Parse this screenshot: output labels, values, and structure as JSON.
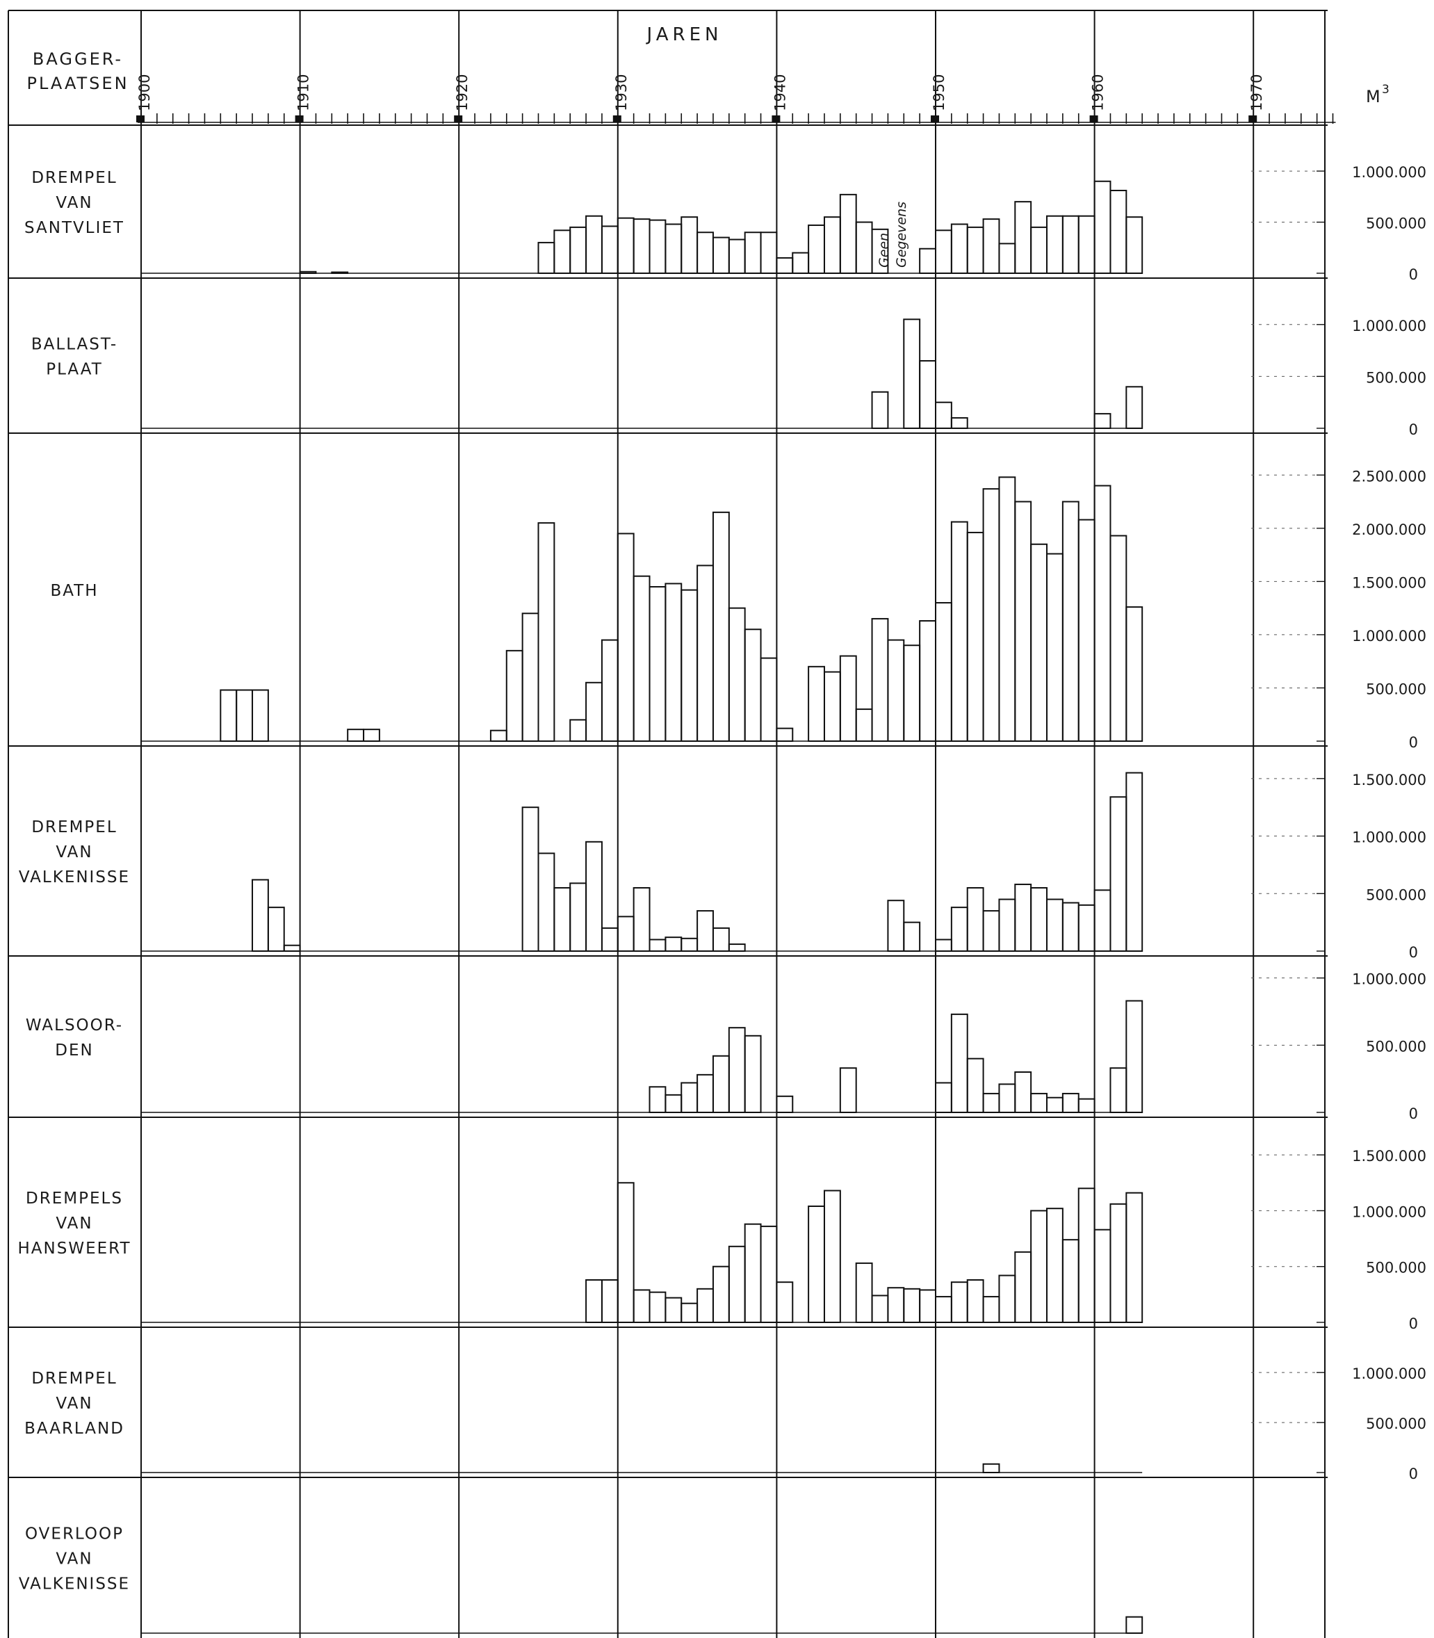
{
  "header": {
    "left_label_line1": "BAGGER-",
    "left_label_line2": "PLAATSEN",
    "center_label": "JAREN",
    "unit_label": "M",
    "unit_superscript": "3"
  },
  "annotation": {
    "line1": "Geen",
    "line2": "Gegevens"
  },
  "chart_data": {
    "type": "bar",
    "x_axis": {
      "start_year": 1900,
      "end_year": 1975,
      "decade_labels": [
        "1900",
        "1910",
        "1920",
        "1930",
        "1940",
        "1950",
        "1960",
        "1970"
      ]
    },
    "panels": [
      {
        "label_lines": [
          "DREMPEL",
          "VAN",
          "SANTVLIET"
        ],
        "ymax": 1300000,
        "ticks": [
          {
            "v": 1000000,
            "label": "1.000.000"
          },
          {
            "v": 500000,
            "label": "500.000"
          },
          {
            "v": 0,
            "label": "0"
          }
        ],
        "bars": [
          [
            1910,
            15000
          ],
          [
            1912,
            10000
          ],
          [
            1925,
            300000
          ],
          [
            1926,
            420000
          ],
          [
            1927,
            450000
          ],
          [
            1928,
            560000
          ],
          [
            1929,
            460000
          ],
          [
            1930,
            540000
          ],
          [
            1931,
            530000
          ],
          [
            1932,
            520000
          ],
          [
            1933,
            480000
          ],
          [
            1934,
            550000
          ],
          [
            1935,
            400000
          ],
          [
            1936,
            350000
          ],
          [
            1937,
            330000
          ],
          [
            1938,
            400000
          ],
          [
            1939,
            400000
          ],
          [
            1940,
            150000
          ],
          [
            1941,
            200000
          ],
          [
            1942,
            470000
          ],
          [
            1943,
            550000
          ],
          [
            1944,
            770000
          ],
          [
            1945,
            500000
          ],
          [
            1946,
            430000
          ],
          [
            1949,
            240000
          ],
          [
            1950,
            420000
          ],
          [
            1951,
            480000
          ],
          [
            1952,
            450000
          ],
          [
            1953,
            530000
          ],
          [
            1954,
            290000
          ],
          [
            1955,
            700000
          ],
          [
            1956,
            450000
          ],
          [
            1957,
            560000
          ],
          [
            1958,
            560000
          ],
          [
            1959,
            560000
          ],
          [
            1960,
            900000
          ],
          [
            1961,
            810000
          ],
          [
            1962,
            550000
          ]
        ]
      },
      {
        "label_lines": [
          "BALLAST-",
          "PLAAT"
        ],
        "ymax": 1300000,
        "ticks": [
          {
            "v": 1000000,
            "label": "1.000.000"
          },
          {
            "v": 500000,
            "label": "500.000"
          },
          {
            "v": 0,
            "label": "0"
          }
        ],
        "bars": [
          [
            1946,
            350000
          ],
          [
            1948,
            1050000
          ],
          [
            1949,
            650000
          ],
          [
            1950,
            250000
          ],
          [
            1951,
            100000
          ],
          [
            1960,
            140000
          ],
          [
            1962,
            400000
          ]
        ]
      },
      {
        "label_lines": [
          "BATH"
        ],
        "ymax": 2750000,
        "ticks": [
          {
            "v": 2500000,
            "label": "2.500.000"
          },
          {
            "v": 2000000,
            "label": "2.000.000"
          },
          {
            "v": 1500000,
            "label": "1.500.000"
          },
          {
            "v": 1000000,
            "label": "1.000.000"
          },
          {
            "v": 500000,
            "label": "500.000"
          },
          {
            "v": 0,
            "label": "0"
          }
        ],
        "bars": [
          [
            1905,
            480000
          ],
          [
            1906,
            480000
          ],
          [
            1907,
            480000
          ],
          [
            1913,
            110000
          ],
          [
            1914,
            110000
          ],
          [
            1922,
            100000
          ],
          [
            1923,
            850000
          ],
          [
            1924,
            1200000
          ],
          [
            1925,
            2050000
          ],
          [
            1926,
            0
          ],
          [
            1927,
            200000
          ],
          [
            1928,
            550000
          ],
          [
            1929,
            950000
          ],
          [
            1930,
            1950000
          ],
          [
            1931,
            1550000
          ],
          [
            1932,
            1450000
          ],
          [
            1933,
            1480000
          ],
          [
            1934,
            1420000
          ],
          [
            1935,
            1650000
          ],
          [
            1936,
            2150000
          ],
          [
            1937,
            1250000
          ],
          [
            1938,
            1050000
          ],
          [
            1939,
            780000
          ],
          [
            1940,
            120000
          ],
          [
            1941,
            0
          ],
          [
            1942,
            700000
          ],
          [
            1943,
            650000
          ],
          [
            1944,
            800000
          ],
          [
            1945,
            300000
          ],
          [
            1946,
            1150000
          ],
          [
            1947,
            950000
          ],
          [
            1948,
            900000
          ],
          [
            1949,
            1130000
          ],
          [
            1950,
            1300000
          ],
          [
            1951,
            2060000
          ],
          [
            1952,
            1960000
          ],
          [
            1953,
            2370000
          ],
          [
            1954,
            2480000
          ],
          [
            1955,
            2250000
          ],
          [
            1956,
            1850000
          ],
          [
            1957,
            1760000
          ],
          [
            1958,
            2250000
          ],
          [
            1959,
            2080000
          ],
          [
            1960,
            2400000
          ],
          [
            1961,
            1930000
          ],
          [
            1962,
            1260000
          ]
        ]
      },
      {
        "label_lines": [
          "DREMPEL",
          "VAN",
          "VALKENISSE"
        ],
        "ymax": 1650000,
        "ticks": [
          {
            "v": 1500000,
            "label": "1.500.000"
          },
          {
            "v": 1000000,
            "label": "1.000.000"
          },
          {
            "v": 500000,
            "label": "500.000"
          },
          {
            "v": 0,
            "label": "0"
          }
        ],
        "bars": [
          [
            1907,
            620000
          ],
          [
            1908,
            380000
          ],
          [
            1909,
            50000
          ],
          [
            1924,
            1250000
          ],
          [
            1925,
            850000
          ],
          [
            1926,
            550000
          ],
          [
            1927,
            590000
          ],
          [
            1928,
            950000
          ],
          [
            1929,
            200000
          ],
          [
            1930,
            300000
          ],
          [
            1931,
            550000
          ],
          [
            1932,
            100000
          ],
          [
            1933,
            120000
          ],
          [
            1934,
            110000
          ],
          [
            1935,
            350000
          ],
          [
            1936,
            200000
          ],
          [
            1937,
            60000
          ],
          [
            1947,
            440000
          ],
          [
            1948,
            250000
          ],
          [
            1950,
            100000
          ],
          [
            1951,
            380000
          ],
          [
            1952,
            550000
          ],
          [
            1953,
            350000
          ],
          [
            1954,
            450000
          ],
          [
            1955,
            580000
          ],
          [
            1956,
            550000
          ],
          [
            1957,
            450000
          ],
          [
            1958,
            420000
          ],
          [
            1959,
            400000
          ],
          [
            1960,
            530000
          ],
          [
            1961,
            1340000
          ],
          [
            1962,
            1550000
          ]
        ]
      },
      {
        "label_lines": [
          "WALSOOR-",
          "DEN"
        ],
        "ymax": 1050000,
        "ticks": [
          {
            "v": 1000000,
            "label": "1.000.000"
          },
          {
            "v": 500000,
            "label": "500.000"
          },
          {
            "v": 0,
            "label": "0"
          }
        ],
        "bars": [
          [
            1932,
            190000
          ],
          [
            1933,
            130000
          ],
          [
            1934,
            220000
          ],
          [
            1935,
            280000
          ],
          [
            1936,
            420000
          ],
          [
            1937,
            630000
          ],
          [
            1938,
            570000
          ],
          [
            1940,
            120000
          ],
          [
            1944,
            330000
          ],
          [
            1950,
            220000
          ],
          [
            1951,
            730000
          ],
          [
            1952,
            400000
          ],
          [
            1953,
            140000
          ],
          [
            1954,
            210000
          ],
          [
            1955,
            300000
          ],
          [
            1956,
            140000
          ],
          [
            1957,
            110000
          ],
          [
            1958,
            140000
          ],
          [
            1959,
            100000
          ],
          [
            1961,
            330000
          ],
          [
            1962,
            830000
          ]
        ]
      },
      {
        "label_lines": [
          "DREMPELS",
          "VAN",
          "HANSWEERT"
        ],
        "ymax": 1700000,
        "ticks": [
          {
            "v": 1500000,
            "label": "1.500.000"
          },
          {
            "v": 1000000,
            "label": "1.000.000"
          },
          {
            "v": 500000,
            "label": "500.000"
          },
          {
            "v": 0,
            "label": "0"
          }
        ],
        "bars": [
          [
            1928,
            380000
          ],
          [
            1929,
            380000
          ],
          [
            1930,
            1250000
          ],
          [
            1931,
            290000
          ],
          [
            1932,
            270000
          ],
          [
            1933,
            220000
          ],
          [
            1934,
            170000
          ],
          [
            1935,
            300000
          ],
          [
            1936,
            500000
          ],
          [
            1937,
            680000
          ],
          [
            1938,
            880000
          ],
          [
            1939,
            860000
          ],
          [
            1940,
            360000
          ],
          [
            1941,
            0
          ],
          [
            1942,
            1040000
          ],
          [
            1943,
            1180000
          ],
          [
            1944,
            0
          ],
          [
            1945,
            530000
          ],
          [
            1946,
            240000
          ],
          [
            1947,
            310000
          ],
          [
            1948,
            300000
          ],
          [
            1949,
            290000
          ],
          [
            1950,
            230000
          ],
          [
            1951,
            360000
          ],
          [
            1952,
            380000
          ],
          [
            1953,
            230000
          ],
          [
            1954,
            420000
          ],
          [
            1955,
            630000
          ],
          [
            1956,
            1000000
          ],
          [
            1957,
            1020000
          ],
          [
            1958,
            740000
          ],
          [
            1959,
            1200000
          ],
          [
            1960,
            830000
          ],
          [
            1961,
            1060000
          ],
          [
            1962,
            1160000
          ]
        ]
      },
      {
        "label_lines": [
          "DREMPEL",
          "VAN",
          "BAARLAND"
        ],
        "ymax": 1300000,
        "ticks": [
          {
            "v": 1000000,
            "label": "1.000.000"
          },
          {
            "v": 500000,
            "label": "500.000"
          },
          {
            "v": 0,
            "label": "0"
          }
        ],
        "bars": [
          [
            1953,
            85000
          ]
        ]
      },
      {
        "label_lines": [
          "OVERLOOP",
          "VAN",
          "VALKENISSE"
        ],
        "ymax": 1300000,
        "ticks": [],
        "bars": [
          [
            1962,
            150000
          ]
        ]
      }
    ]
  }
}
